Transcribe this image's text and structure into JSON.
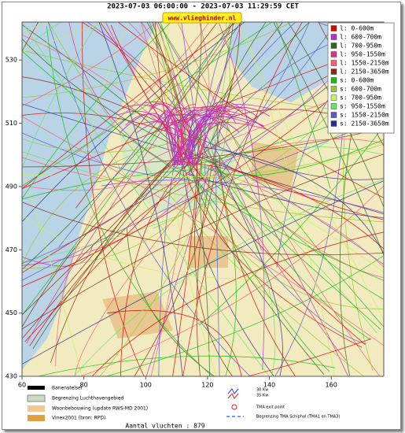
{
  "map": {
    "title": "2023-07-03 06:00:00 - 2023-07-03 11:29:59 CET",
    "badge": "www.vlieghinder.nl",
    "xlim": [
      60,
      177
    ],
    "ylim": [
      430,
      542
    ],
    "xticks": [
      60,
      80,
      100,
      120,
      140,
      160
    ],
    "yticks": [
      430,
      450,
      470,
      490,
      510,
      530
    ],
    "legend": [
      {
        "name": "l: 0-600m",
        "color": "#e00000"
      },
      {
        "name": "l: 600-700m",
        "color": "#b030d0"
      },
      {
        "name": "l: 700-950m",
        "color": "#2f6a1a"
      },
      {
        "name": "l: 950-1550m",
        "color": "#e0308c"
      },
      {
        "name": "l: 1550-2150m",
        "color": "#ff5a78"
      },
      {
        "name": "l: 2150-3650m",
        "color": "#8b2a10"
      },
      {
        "name": "s: 0-600m",
        "color": "#10c010"
      },
      {
        "name": "s: 600-700m",
        "color": "#98c830"
      },
      {
        "name": "s: 700-950m",
        "color": "#c8f060"
      },
      {
        "name": "s: 950-1550m",
        "color": "#60e860"
      },
      {
        "name": "s: 1550-2150m",
        "color": "#5a5ac8"
      },
      {
        "name": "s: 2150-3650m",
        "color": "#2c2c8c"
      }
    ],
    "key": {
      "runways": "Banenstelsel",
      "airport_boundary": "Begrenzing Luchthavengebied",
      "housing": "Woonbebouwing (update RWS-MD 2001)",
      "vinex": "Vinex2001 (bron: RPD)",
      "noise_30": "30 Kw",
      "noise_35": "35 Kw",
      "exit_point": "TMA exit point",
      "tma_boundary": "Begrenzing TMA Schiphol  (TMA1 en TMA3)"
    },
    "footer": "Aantal vluchten : 879"
  }
}
